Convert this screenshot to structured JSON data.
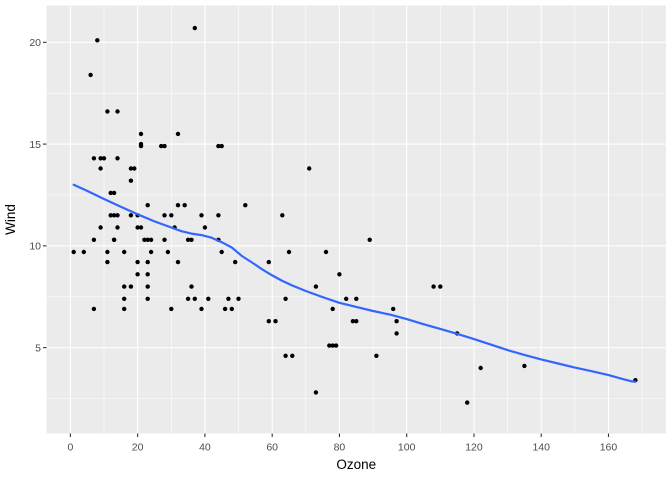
{
  "figure": {
    "x_axis_title": "Ozone",
    "y_axis_title": "Wind"
  },
  "colors": {
    "background": "#ffffff",
    "panel_background": "#ebebeb",
    "grid_major": "#ffffff",
    "grid_minor": "#f5f5f5",
    "point": "#000000",
    "smooth_line": "#3366ff",
    "tick_label": "#4d4d4d",
    "axis_title": "#000000",
    "tick_mark": "#333333"
  },
  "chart_data": {
    "type": "scatter",
    "title": "",
    "xlabel": "Ozone",
    "ylabel": "Wind",
    "legend": false,
    "grid": true,
    "x_ticks": [
      0,
      20,
      40,
      60,
      80,
      100,
      120,
      140,
      160
    ],
    "x_minor_ticks": [
      10,
      30,
      50,
      70,
      90,
      110,
      130,
      150,
      170
    ],
    "y_ticks": [
      5,
      10,
      15,
      20
    ],
    "y_minor_ticks": [
      2.5,
      7.5,
      12.5,
      17.5
    ],
    "xlim": [
      -7.1,
      177.1
    ],
    "ylim": [
      0.78,
      21.81
    ],
    "points": [
      [
        41,
        7.4
      ],
      [
        36,
        8.0
      ],
      [
        12,
        12.6
      ],
      [
        18,
        11.5
      ],
      [
        28,
        14.9
      ],
      [
        23,
        8.6
      ],
      [
        19,
        13.8
      ],
      [
        8,
        20.1
      ],
      [
        7,
        6.9
      ],
      [
        16,
        9.7
      ],
      [
        11,
        9.2
      ],
      [
        14,
        10.9
      ],
      [
        18,
        13.2
      ],
      [
        14,
        11.5
      ],
      [
        34,
        12.0
      ],
      [
        6,
        18.4
      ],
      [
        30,
        11.5
      ],
      [
        11,
        9.7
      ],
      [
        1,
        9.7
      ],
      [
        11,
        16.6
      ],
      [
        4,
        9.7
      ],
      [
        32,
        12.0
      ],
      [
        23,
        12.0
      ],
      [
        45,
        14.9
      ],
      [
        115,
        5.7
      ],
      [
        37,
        7.4
      ],
      [
        29,
        9.7
      ],
      [
        71,
        13.8
      ],
      [
        39,
        11.5
      ],
      [
        23,
        8.0
      ],
      [
        21,
        14.9
      ],
      [
        37,
        20.7
      ],
      [
        20,
        9.2
      ],
      [
        12,
        11.5
      ],
      [
        13,
        10.3
      ],
      [
        135,
        4.1
      ],
      [
        49,
        9.2
      ],
      [
        32,
        9.2
      ],
      [
        64,
        4.6
      ],
      [
        40,
        10.9
      ],
      [
        77,
        5.1
      ],
      [
        97,
        6.3
      ],
      [
        97,
        5.7
      ],
      [
        85,
        7.4
      ],
      [
        10,
        14.3
      ],
      [
        27,
        14.9
      ],
      [
        7,
        14.3
      ],
      [
        48,
        6.9
      ],
      [
        35,
        10.3
      ],
      [
        61,
        6.3
      ],
      [
        79,
        5.1
      ],
      [
        63,
        11.5
      ],
      [
        16,
        6.9
      ],
      [
        80,
        8.6
      ],
      [
        108,
        8.0
      ],
      [
        20,
        8.6
      ],
      [
        52,
        12.0
      ],
      [
        82,
        7.4
      ],
      [
        50,
        7.4
      ],
      [
        64,
        7.4
      ],
      [
        59,
        9.2
      ],
      [
        39,
        6.9
      ],
      [
        9,
        13.8
      ],
      [
        16,
        7.4
      ],
      [
        78,
        6.9
      ],
      [
        35,
        7.4
      ],
      [
        66,
        4.6
      ],
      [
        122,
        4.0
      ],
      [
        89,
        10.3
      ],
      [
        110,
        8.0
      ],
      [
        44,
        11.5
      ],
      [
        28,
        11.5
      ],
      [
        65,
        9.7
      ],
      [
        22,
        10.3
      ],
      [
        59,
        6.3
      ],
      [
        23,
        7.4
      ],
      [
        31,
        10.9
      ],
      [
        44,
        10.3
      ],
      [
        21,
        15.5
      ],
      [
        9,
        14.3
      ],
      [
        45,
        9.7
      ],
      [
        168,
        3.4
      ],
      [
        73,
        8.0
      ],
      [
        76,
        9.7
      ],
      [
        118,
        2.3
      ],
      [
        84,
        6.3
      ],
      [
        85,
        6.3
      ],
      [
        96,
        6.9
      ],
      [
        78,
        5.1
      ],
      [
        73,
        2.8
      ],
      [
        91,
        4.6
      ],
      [
        47,
        7.4
      ],
      [
        32,
        15.5
      ],
      [
        20,
        10.9
      ],
      [
        23,
        10.3
      ],
      [
        21,
        10.9
      ],
      [
        24,
        9.7
      ],
      [
        44,
        14.9
      ],
      [
        21,
        15.0
      ],
      [
        28,
        10.3
      ],
      [
        9,
        10.9
      ],
      [
        13,
        11.5
      ],
      [
        46,
        6.9
      ],
      [
        18,
        13.8
      ],
      [
        13,
        10.3
      ],
      [
        24,
        10.3
      ],
      [
        16,
        8.0
      ],
      [
        13,
        12.6
      ],
      [
        23,
        9.2
      ],
      [
        36,
        10.3
      ],
      [
        7,
        10.3
      ],
      [
        14,
        16.6
      ],
      [
        30,
        6.9
      ],
      [
        14,
        14.3
      ],
      [
        18,
        8.0
      ],
      [
        20,
        11.5
      ]
    ],
    "smooth_line": {
      "name": "loess-smooth",
      "points": [
        [
          1,
          13.0
        ],
        [
          5,
          12.7
        ],
        [
          10,
          12.3
        ],
        [
          15,
          11.92
        ],
        [
          20,
          11.55
        ],
        [
          25,
          11.2
        ],
        [
          30,
          10.9
        ],
        [
          33,
          10.72
        ],
        [
          36,
          10.6
        ],
        [
          39,
          10.53
        ],
        [
          42,
          10.4
        ],
        [
          45,
          10.18
        ],
        [
          48,
          9.92
        ],
        [
          51,
          9.5
        ],
        [
          54,
          9.18
        ],
        [
          57,
          8.85
        ],
        [
          60,
          8.55
        ],
        [
          63,
          8.28
        ],
        [
          66,
          8.05
        ],
        [
          70,
          7.78
        ],
        [
          75,
          7.48
        ],
        [
          80,
          7.2
        ],
        [
          85,
          7.0
        ],
        [
          90,
          6.8
        ],
        [
          95,
          6.62
        ],
        [
          100,
          6.4
        ],
        [
          105,
          6.15
        ],
        [
          110,
          5.92
        ],
        [
          115,
          5.68
        ],
        [
          120,
          5.42
        ],
        [
          125,
          5.15
        ],
        [
          130,
          4.88
        ],
        [
          135,
          4.64
        ],
        [
          140,
          4.42
        ],
        [
          145,
          4.22
        ],
        [
          150,
          4.02
        ],
        [
          155,
          3.84
        ],
        [
          160,
          3.65
        ],
        [
          164,
          3.47
        ],
        [
          167,
          3.34
        ],
        [
          168,
          3.32
        ]
      ]
    }
  }
}
